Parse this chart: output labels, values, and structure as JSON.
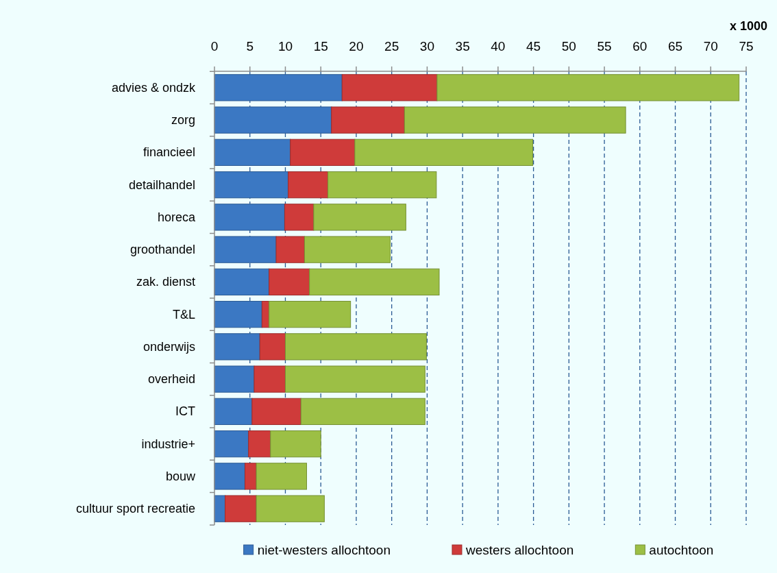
{
  "chart_data": {
    "type": "bar",
    "orientation": "horizontal",
    "stacked": true,
    "categories": [
      "advies & ondzk",
      "zorg",
      "financieel",
      "detailhandel",
      "horeca",
      "groothandel",
      "zak. dienst",
      "T&L",
      "onderwijs",
      "overheid",
      "ICT",
      "industrie+",
      "bouw",
      "cultuur sport recreatie"
    ],
    "series": [
      {
        "name": "niet-westers allochtoon",
        "color": "#3b78c3",
        "values": [
          18,
          16.5,
          10.7,
          10.4,
          9.9,
          8.7,
          7.7,
          6.7,
          6.4,
          5.6,
          5.3,
          4.8,
          4.3,
          1.5
        ]
      },
      {
        "name": "westers allochtoon",
        "color": "#cf3b3a",
        "values": [
          13.4,
          10.3,
          9.1,
          5.6,
          4.1,
          4.0,
          5.7,
          1.0,
          3.6,
          4.4,
          6.9,
          3.1,
          1.6,
          4.4
        ]
      },
      {
        "name": "autochtoon",
        "color": "#9cbf45",
        "values": [
          42.6,
          31.2,
          25.1,
          15.3,
          13.0,
          12.1,
          18.3,
          11.5,
          19.9,
          19.7,
          17.5,
          7.1,
          7.1,
          9.6
        ]
      }
    ],
    "xlabel": "x 1000",
    "xlim": [
      0,
      75
    ],
    "xticks": [
      0,
      5,
      10,
      15,
      20,
      25,
      30,
      35,
      40,
      45,
      50,
      55,
      60,
      65,
      70,
      75
    ],
    "grid": "x",
    "legend": "bottom"
  }
}
